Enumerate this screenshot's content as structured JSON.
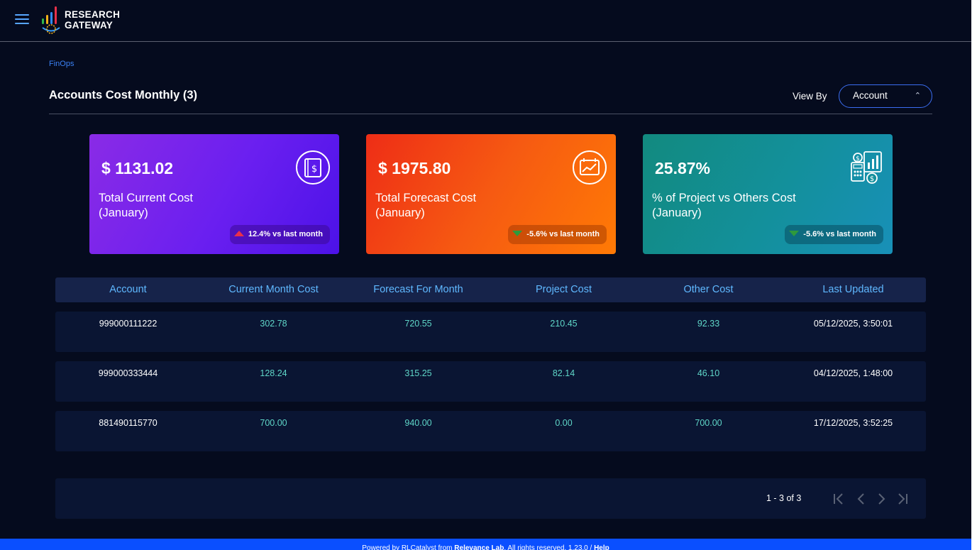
{
  "app": {
    "logo_line1": "RESEARCH",
    "logo_line2": "GATEWAY"
  },
  "breadcrumb": "FinOps",
  "page": {
    "title": "Accounts Cost Monthly (3)",
    "view_by_label": "View By",
    "view_by_value": "Account"
  },
  "cards": [
    {
      "amount": "$ 1131.02",
      "label_line1": "Total Current Cost",
      "label_line2": "(January)",
      "trend": "12.4% vs last month",
      "trend_direction": "up",
      "icon": "receipt-dollar-icon",
      "color": "#6a1ff0"
    },
    {
      "amount": "$ 1975.80",
      "label_line1": "Total Forecast Cost",
      "label_line2": "(January)",
      "trend": "-5.6% vs last month",
      "trend_direction": "down",
      "icon": "forecast-chart-icon",
      "color": "#f65a12"
    },
    {
      "amount": "25.87%",
      "label_line1": "% of Project vs Others Cost",
      "label_line2": "(January)",
      "trend": "-5.6% vs last month",
      "trend_direction": "down",
      "icon": "finance-report-icon",
      "color": "#13909c"
    }
  ],
  "table": {
    "columns": [
      "Account",
      "Current Month Cost",
      "Forecast For Month",
      "Project Cost",
      "Other Cost",
      "Last Updated"
    ],
    "rows": [
      [
        "999000111222",
        "302.78",
        "720.55",
        "210.45",
        "92.33",
        "05/12/2025, 3:50:01"
      ],
      [
        "999000333444",
        "128.24",
        "315.25",
        "82.14",
        "46.10",
        "04/12/2025, 1:48:00"
      ],
      [
        "881490115770",
        "700.00",
        "940.00",
        "0.00",
        "700.00",
        "17/12/2025, 3:52:25"
      ]
    ]
  },
  "pagination": {
    "range": "1 - 3 of 3"
  },
  "footer": {
    "prefix": "Powered by RLCatalyst from ",
    "company": "Relevance Lab",
    "middle": ". All rights reserved. 1.23.0 / ",
    "help": "Help"
  },
  "colors": {
    "accent": "#3b82f6",
    "table_header_text": "#5fb8ff",
    "numeric_text": "#5fd6c8",
    "footer_bar": "#0a4fff"
  }
}
